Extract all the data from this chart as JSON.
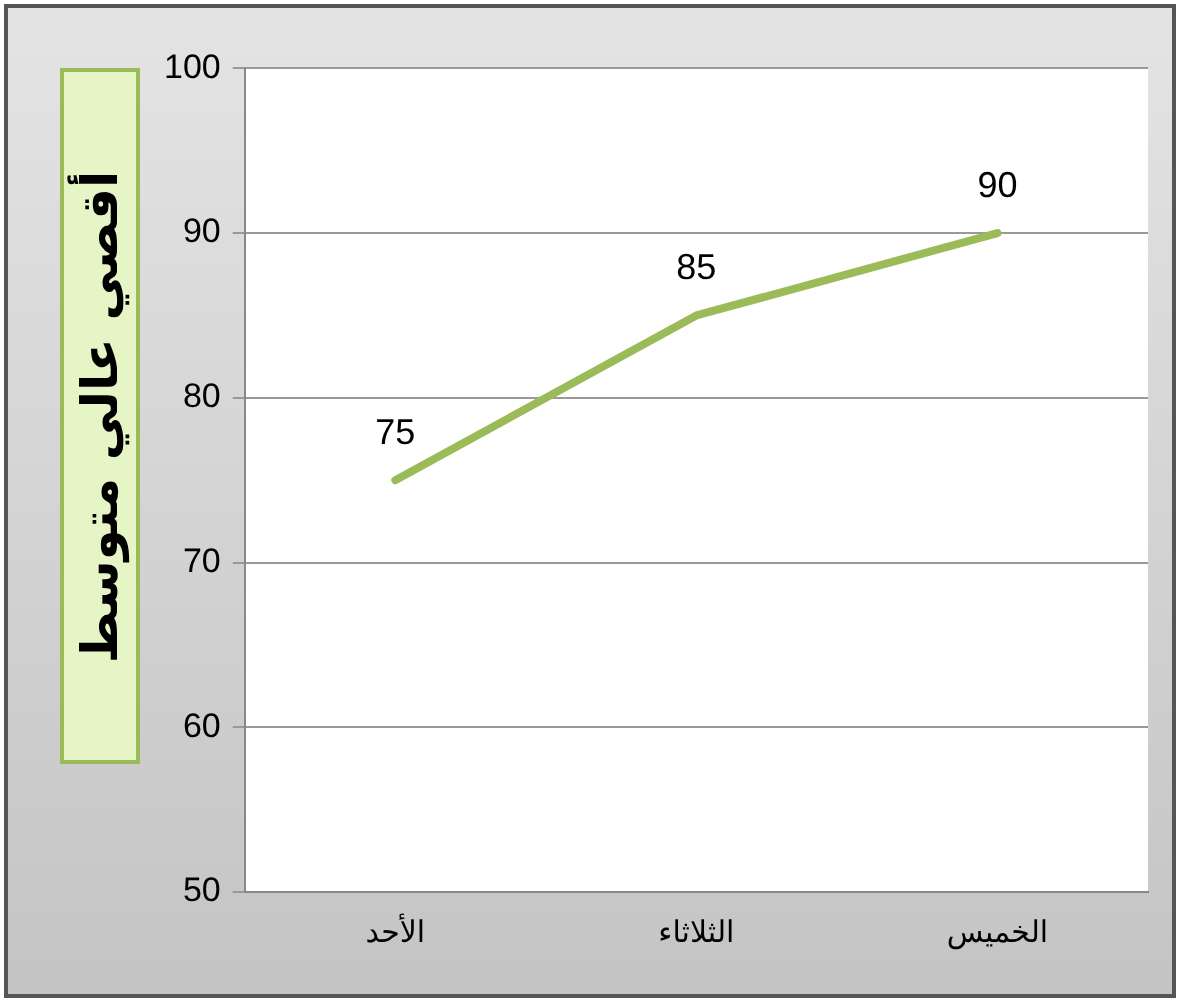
{
  "chart_data": {
    "type": "line",
    "ylabel": "أقصي عالي متوسط",
    "categories": [
      "الأحد",
      "الثلاثاء",
      "الخميس"
    ],
    "series": [
      {
        "color": "#9bbb59",
        "values": [
          75,
          85,
          90
        ]
      }
    ],
    "ylim": [
      50,
      100
    ],
    "yticks": [
      50,
      60,
      70,
      80,
      90,
      100
    ],
    "grid": "y",
    "legend": false,
    "data_labels": true,
    "marker": "none",
    "line_style": "solid"
  }
}
